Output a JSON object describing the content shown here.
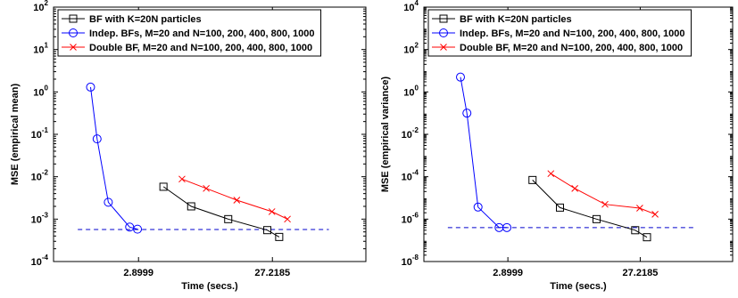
{
  "chart_data": [
    {
      "type": "line",
      "xscale": "log",
      "yscale": "log",
      "xlim": [
        0.7,
        130
      ],
      "ylim": [
        0.0001,
        100
      ],
      "xticks": [
        2.8999,
        27.2185
      ],
      "xtick_labels": [
        "2.8999",
        "27.2185"
      ],
      "yticks": [
        0.0001,
        0.001,
        0.01,
        0.1,
        1,
        10,
        100
      ],
      "ytick_labels": [
        {
          "base": "10",
          "exp": "-4"
        },
        {
          "base": "10",
          "exp": "-3"
        },
        {
          "base": "10",
          "exp": "-2"
        },
        {
          "base": "10",
          "exp": "-1"
        },
        {
          "base": "10",
          "exp": "0"
        },
        {
          "base": "10",
          "exp": "1"
        },
        {
          "base": "10",
          "exp": "2"
        }
      ],
      "xlabel": "Time (secs.)",
      "ylabel": "MSE (empirical mean)",
      "legend_position": "top-left",
      "reference_line": {
        "y": 0.00057,
        "x_range": [
          1.05,
          70
        ],
        "color": "#0000cc",
        "style": "dashed"
      },
      "series": [
        {
          "name": "BF with K=20N particles",
          "color": "#000000",
          "marker": "square",
          "x": [
            4.4,
            7.0,
            13.0,
            25.0,
            30.5
          ],
          "y": [
            0.0058,
            0.002,
            0.001,
            0.00055,
            0.00038
          ]
        },
        {
          "name": "Indep. BFs, M=20 and N=100, 200, 400, 800, 1000",
          "color": "#0000ff",
          "marker": "circle",
          "x": [
            1.3,
            1.45,
            1.75,
            2.5,
            2.85
          ],
          "y": [
            1.3,
            0.078,
            0.0025,
            0.00065,
            0.00058
          ]
        },
        {
          "name": "Double BF, M=20 and N=100, 200, 400, 800, 1000",
          "color": "#ff0000",
          "marker": "x",
          "x": [
            6.0,
            9.0,
            15.0,
            27.0,
            35.0
          ],
          "y": [
            0.0088,
            0.0053,
            0.0028,
            0.0015,
            0.001
          ]
        }
      ]
    },
    {
      "type": "line",
      "xscale": "log",
      "yscale": "log",
      "xlim": [
        0.7,
        130
      ],
      "ylim": [
        1e-08,
        10000
      ],
      "xticks": [
        2.8999,
        27.2185
      ],
      "xtick_labels": [
        "2.8999",
        "27.2185"
      ],
      "yticks": [
        1e-08,
        1e-06,
        0.0001,
        0.01,
        1,
        100,
        10000
      ],
      "ytick_labels": [
        {
          "base": "10",
          "exp": "-8"
        },
        {
          "base": "10",
          "exp": "-6"
        },
        {
          "base": "10",
          "exp": "-4"
        },
        {
          "base": "10",
          "exp": "-2"
        },
        {
          "base": "10",
          "exp": "0"
        },
        {
          "base": "10",
          "exp": "2"
        },
        {
          "base": "10",
          "exp": "4"
        }
      ],
      "xlabel": "Time (secs.)",
      "ylabel": "MSE (empirical variance)",
      "legend_position": "top-left",
      "reference_line": {
        "y": 4e-07,
        "x_range": [
          1.05,
          70
        ],
        "color": "#0000cc",
        "style": "dashed"
      },
      "series": [
        {
          "name": "BF with K=20N particles",
          "color": "#000000",
          "marker": "square",
          "x": [
            4.4,
            7.0,
            13.0,
            25.0,
            30.5
          ],
          "y": [
            7e-05,
            3.5e-06,
            1e-06,
            3e-07,
            1.4e-07
          ]
        },
        {
          "name": "Indep. BFs, M=20 and N=100, 200, 400, 800, 1000",
          "color": "#0000ff",
          "marker": "circle",
          "x": [
            1.3,
            1.45,
            1.75,
            2.5,
            2.85
          ],
          "y": [
            5.0,
            0.1,
            3.7e-06,
            4e-07,
            4e-07
          ]
        },
        {
          "name": "Double BF, M=20 and N=100, 200, 400, 800, 1000",
          "color": "#ff0000",
          "marker": "x",
          "x": [
            6.0,
            9.0,
            15.0,
            27.0,
            35.0
          ],
          "y": [
            0.00014,
            2.8e-05,
            5e-06,
            3.3e-06,
            1.7e-06
          ]
        }
      ]
    }
  ]
}
